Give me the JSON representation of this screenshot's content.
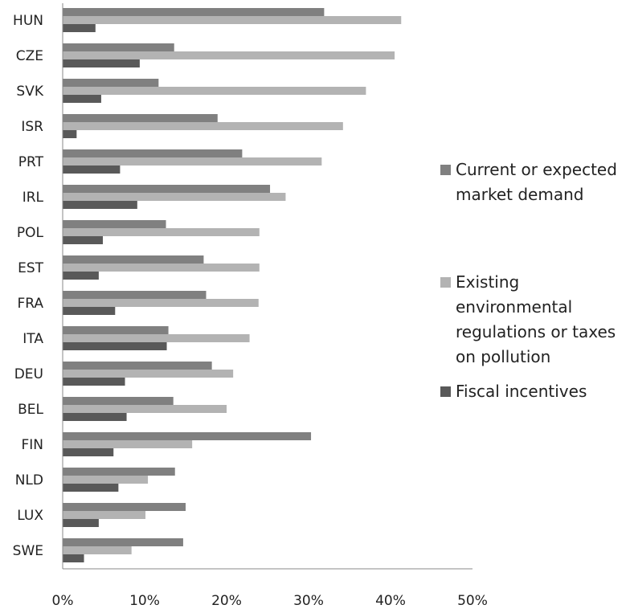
{
  "chart_data": {
    "type": "bar",
    "orientation": "horizontal",
    "categories": [
      "HUN",
      "CZE",
      "SVK",
      "ISR",
      "PRT",
      "IRL",
      "POL",
      "EST",
      "FRA",
      "ITA",
      "DEU",
      "BEL",
      "FIN",
      "NLD",
      "LUX",
      "SWE"
    ],
    "series": [
      {
        "name": "Current or expected market demand",
        "color": "#808080",
        "values": [
          31.9,
          13.6,
          11.7,
          18.9,
          21.9,
          25.3,
          12.6,
          17.2,
          17.5,
          12.9,
          18.2,
          13.5,
          30.3,
          13.7,
          15.0,
          14.7
        ]
      },
      {
        "name": "Existing environmental regulations or taxes on pollution",
        "color": "#b3b3b3",
        "values": [
          41.3,
          40.5,
          37.0,
          34.2,
          31.6,
          27.2,
          24.0,
          24.0,
          23.9,
          22.8,
          20.8,
          20.0,
          15.8,
          10.4,
          10.1,
          8.4
        ]
      },
      {
        "name": "Fiscal incentives",
        "color": "#595959",
        "values": [
          4.0,
          9.4,
          4.7,
          1.7,
          7.0,
          9.1,
          4.9,
          4.4,
          6.4,
          12.7,
          7.6,
          7.8,
          6.2,
          6.8,
          4.4,
          2.6
        ]
      }
    ],
    "xlim": [
      0,
      50
    ],
    "xticks": [
      {
        "value": 0,
        "label": "0%"
      },
      {
        "value": 10,
        "label": "10%"
      },
      {
        "value": 20,
        "label": "20%"
      },
      {
        "value": 30,
        "label": "30%"
      },
      {
        "value": 40,
        "label": "40%"
      },
      {
        "value": 50,
        "label": "50%"
      }
    ],
    "legend": "right"
  }
}
